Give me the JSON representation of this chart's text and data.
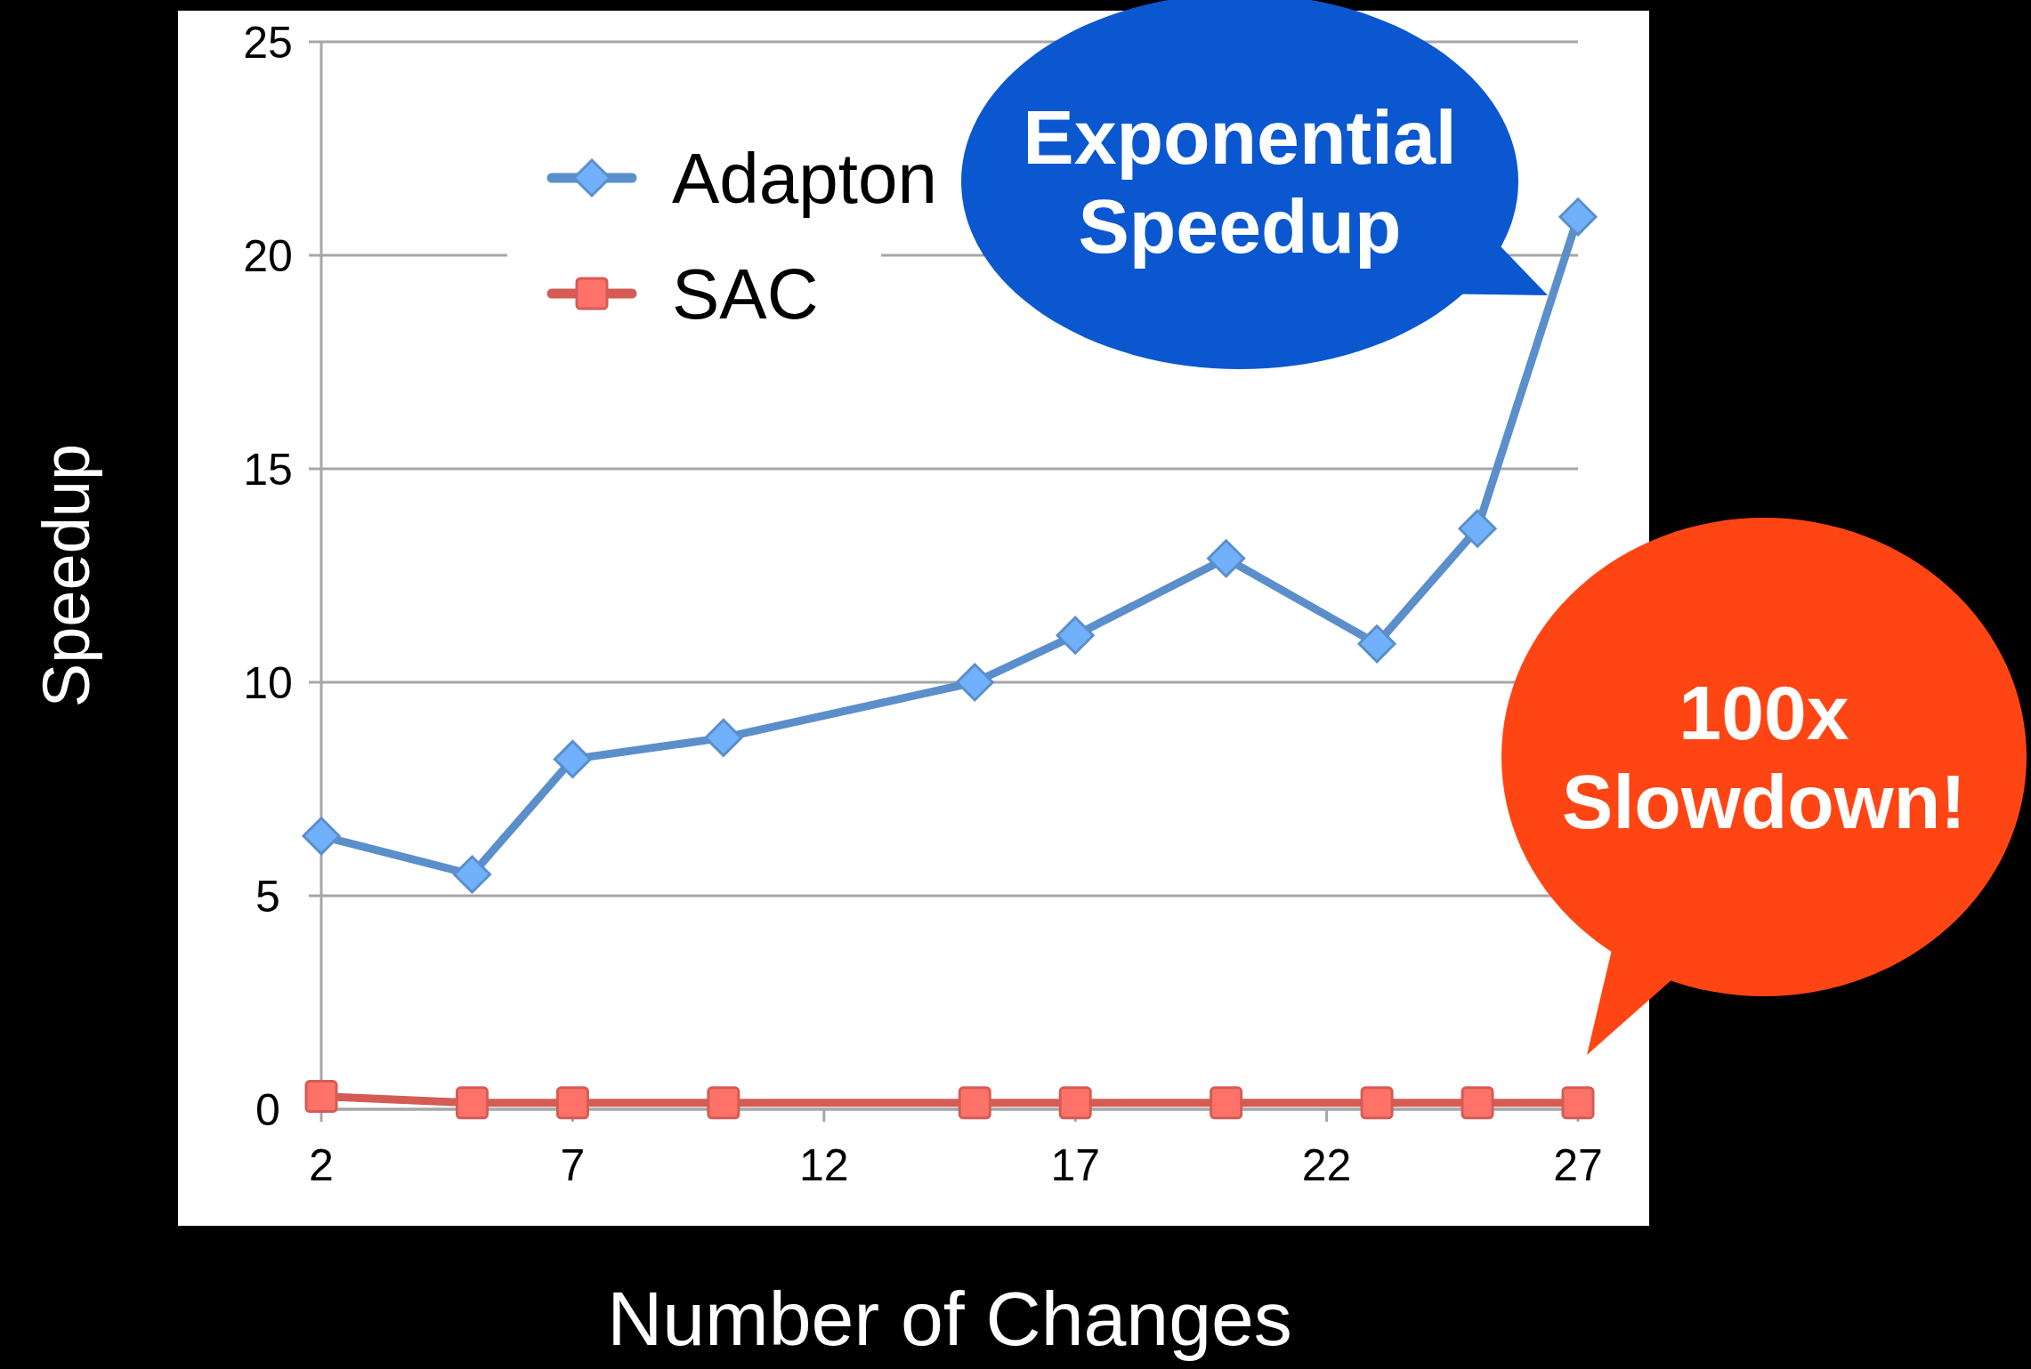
{
  "chart_data": {
    "type": "line",
    "xlabel": "Number of Changes",
    "ylabel": "Speedup",
    "xlim": [
      2,
      27
    ],
    "xticks": [
      2,
      7,
      12,
      17,
      22,
      27
    ],
    "ylim": [
      0,
      25
    ],
    "yticks": [
      0,
      5,
      10,
      15,
      20,
      25
    ],
    "grid": "y",
    "legend": "top left",
    "line_style": "solid",
    "series": [
      {
        "name": "Adapton",
        "color": "#5b8fcb",
        "marker": "diamond",
        "x": [
          2,
          5,
          7,
          10,
          15,
          17,
          20,
          23,
          25,
          27
        ],
        "values": [
          6.4,
          5.5,
          8.2,
          8.7,
          10.0,
          11.1,
          12.9,
          10.9,
          13.6,
          20.9
        ]
      },
      {
        "name": "SAC",
        "color": "#d45c55",
        "marker": "square",
        "x": [
          2,
          5,
          7,
          10,
          15,
          17,
          20,
          23,
          25,
          27
        ],
        "values": [
          0.3,
          0.15,
          0.15,
          0.15,
          0.15,
          0.15,
          0.15,
          0.15,
          0.15,
          0.15
        ]
      }
    ],
    "annotations": [
      "Exponential Speedup",
      "100x Slowdown!"
    ]
  }
}
